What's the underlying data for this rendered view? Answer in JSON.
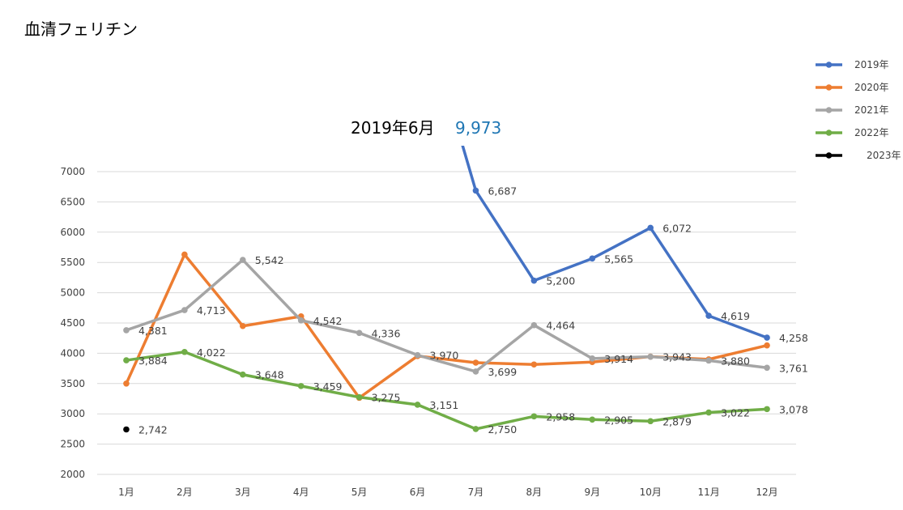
{
  "chart_data": {
    "type": "line",
    "title": "血清フェリチン",
    "categories": [
      "1月",
      "2月",
      "3月",
      "4月",
      "5月",
      "6月",
      "7月",
      "8月",
      "9月",
      "10月",
      "11月",
      "12月"
    ],
    "ylim": [
      2000,
      7000
    ],
    "yticks": [
      2000,
      2500,
      3000,
      3500,
      4000,
      4500,
      5000,
      5500,
      6000,
      6500,
      7000
    ],
    "grid": true,
    "legend_position": "top-right",
    "series": [
      {
        "name": "2019年",
        "color": "#4472c4",
        "values": [
          null,
          null,
          null,
          null,
          null,
          9973,
          6687,
          5200,
          5565,
          6072,
          4619,
          4258
        ],
        "labels": [
          "",
          "",
          "",
          "",
          "",
          "",
          "6,687",
          "5,200",
          "5,565",
          "6,072",
          "4,619",
          "4,258"
        ]
      },
      {
        "name": "2020年",
        "color": "#ed7d31",
        "values": [
          3500,
          5630,
          4450,
          4610,
          3265,
          3955,
          3845,
          3815,
          3855,
          3945,
          3900,
          4130
        ],
        "labels": [
          "",
          "",
          "",
          "",
          "",
          "",
          "",
          "",
          "",
          "",
          "",
          ""
        ]
      },
      {
        "name": "2021年",
        "color": "#a5a5a5",
        "values": [
          4381,
          4713,
          5542,
          4542,
          4336,
          3970,
          3699,
          4464,
          3914,
          3943,
          3880,
          3761
        ],
        "labels": [
          "4,381",
          "4,713",
          "5,542",
          "4,542",
          "4,336",
          "3,970",
          "3,699",
          "4,464",
          "3,914",
          "3,943",
          "3,880",
          "3,761"
        ]
      },
      {
        "name": "2022年",
        "color": "#70ad47",
        "values": [
          3884,
          4022,
          3648,
          3459,
          3275,
          3151,
          2750,
          2958,
          2905,
          2879,
          3022,
          3078
        ],
        "labels": [
          "3,884",
          "4,022",
          "3,648",
          "3,459",
          "3,275",
          "3,151",
          "2,750",
          "2,958",
          "2,905",
          "2,879",
          "3,022",
          "3,078"
        ]
      },
      {
        "name": "2023年",
        "color": "#000000",
        "values": [
          2742,
          null,
          null,
          null,
          null,
          null,
          null,
          null,
          null,
          null,
          null,
          null
        ],
        "labels": [
          "2,742",
          "",
          "",
          "",
          "",
          "",
          "",
          "",
          "",
          "",
          "",
          ""
        ]
      }
    ],
    "annotations": [
      {
        "text": "2019年6月",
        "value": "9,973",
        "series": "2019年",
        "category": "6月"
      }
    ]
  }
}
